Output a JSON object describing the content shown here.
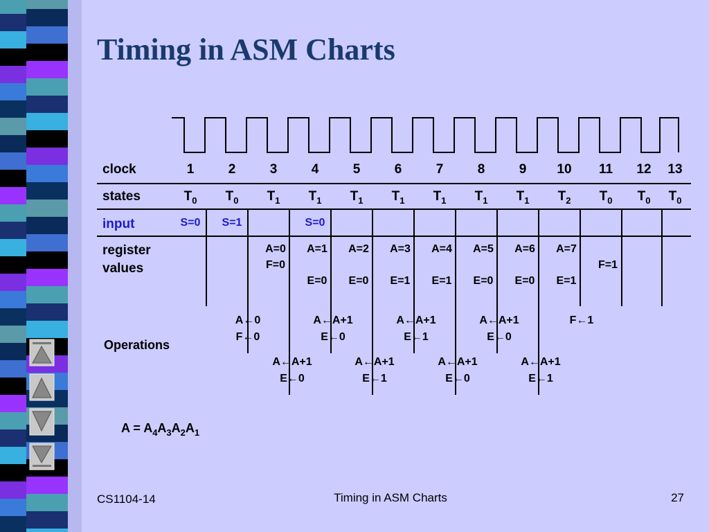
{
  "title": "Timing in ASM Charts",
  "table": {
    "labels": {
      "clock": "clock",
      "states": "states",
      "input": "input",
      "register": [
        "register",
        "values"
      ],
      "operations": "Operations"
    },
    "clock": [
      "1",
      "2",
      "3",
      "4",
      "5",
      "6",
      "7",
      "8",
      "9",
      "10",
      "11",
      "12",
      "13"
    ],
    "states": [
      {
        "base": "T",
        "sub": "0"
      },
      {
        "base": "T",
        "sub": "0"
      },
      {
        "base": "T",
        "sub": "1"
      },
      {
        "base": "T",
        "sub": "1"
      },
      {
        "base": "T",
        "sub": "1"
      },
      {
        "base": "T",
        "sub": "1"
      },
      {
        "base": "T",
        "sub": "1"
      },
      {
        "base": "T",
        "sub": "1"
      },
      {
        "base": "T",
        "sub": "1"
      },
      {
        "base": "T",
        "sub": "2"
      },
      {
        "base": "T",
        "sub": "0"
      },
      {
        "base": "T",
        "sub": "0"
      },
      {
        "base": "T",
        "sub": "0"
      }
    ],
    "input": [
      "S=0",
      "S=1",
      null,
      "S=0",
      null,
      null,
      null,
      null,
      null,
      null,
      null,
      null,
      null
    ],
    "register_top": [
      null,
      null,
      "A=0",
      "A=1",
      "A=2",
      "A=3",
      "A=4",
      "A=5",
      "A=6",
      "A=7",
      null,
      null,
      null
    ],
    "register_middle": [
      null,
      null,
      "F=0",
      null,
      null,
      null,
      null,
      null,
      null,
      null,
      "F=1",
      null,
      null
    ],
    "register_bottom": [
      null,
      null,
      null,
      "E=0",
      "E=0",
      "E=1",
      "E=1",
      "E=0",
      "E=0",
      "E=1",
      null,
      null,
      null
    ],
    "ops_upper": [
      [
        "A←0",
        "F←0"
      ],
      [
        "A←A+1",
        "E←0"
      ],
      [
        "A←A+1",
        "E←1"
      ],
      [
        "A←A+1",
        "E←0"
      ],
      [
        "F←1"
      ]
    ],
    "ops_lower": [
      [
        "A←A+1",
        "E←0"
      ],
      [
        "A←A+1",
        "E←1"
      ],
      [
        "A←A+1",
        "E←0"
      ],
      [
        "A←A+1",
        "E←1"
      ]
    ]
  },
  "formula": {
    "lhs": "A = ",
    "terms": [
      {
        "base": "A",
        "sub": "4"
      },
      {
        "base": "A",
        "sub": "3"
      },
      {
        "base": "A",
        "sub": "2"
      },
      {
        "base": "A",
        "sub": "1"
      }
    ]
  },
  "footer": {
    "left": "CS1104-14",
    "center": "Timing in ASM Charts",
    "right": "27"
  }
}
